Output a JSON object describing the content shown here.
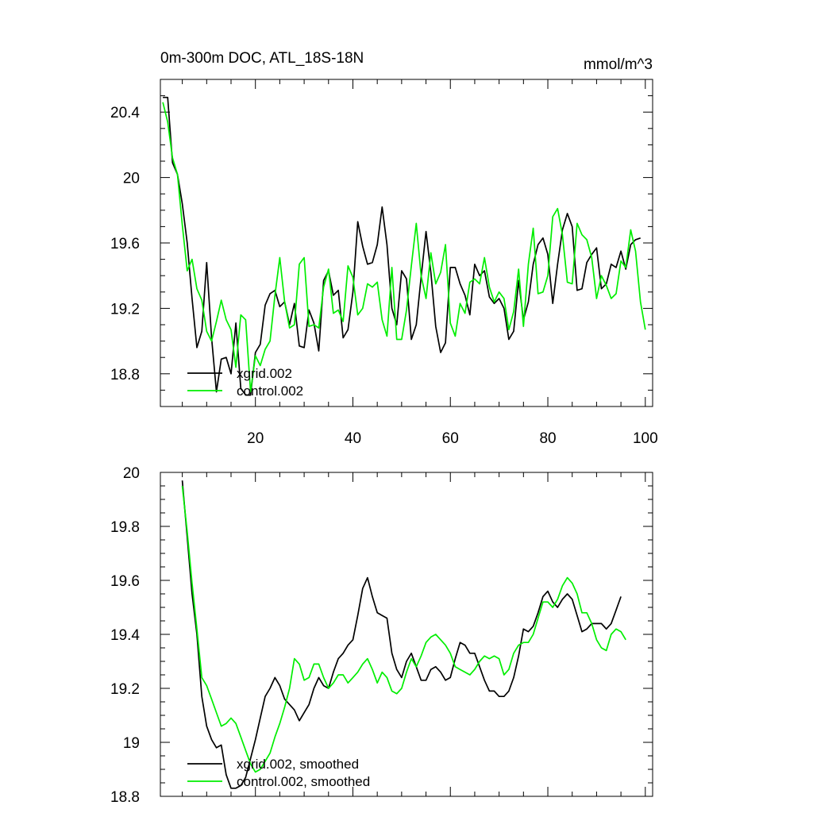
{
  "chart_data": [
    {
      "type": "line",
      "title": "0m-300m DOC, ATL_18S-18N",
      "units": "mmol/m^3",
      "xlim": [
        0.5,
        101.5
      ],
      "ylim": [
        18.6,
        20.6
      ],
      "xticks": [
        20,
        40,
        60,
        80,
        100
      ],
      "yticks": [
        18.8,
        19.2,
        19.6,
        20.0,
        20.4
      ],
      "show_x_labels": true,
      "legend": [
        {
          "name": "xgrid.002",
          "color": "#000000"
        },
        {
          "name": "control.002",
          "color": "#00ee00"
        }
      ],
      "series": [
        {
          "name": "xgrid.002",
          "color": "#000000",
          "x_start": 1,
          "values": [
            20.49,
            20.49,
            20.09,
            20.02,
            19.84,
            19.6,
            19.26,
            18.96,
            19.06,
            19.48,
            19.02,
            18.69,
            18.89,
            18.9,
            18.8,
            19.11,
            18.71,
            18.67,
            18.67,
            18.93,
            18.98,
            19.22,
            19.29,
            19.31,
            19.21,
            19.24,
            19.1,
            19.23,
            18.97,
            18.96,
            19.19,
            19.11,
            18.94,
            19.37,
            19.43,
            19.28,
            19.31,
            19.02,
            19.07,
            19.3,
            19.73,
            19.58,
            19.47,
            19.48,
            19.59,
            19.82,
            19.59,
            19.2,
            19.1,
            19.43,
            19.38,
            19.01,
            19.1,
            19.39,
            19.67,
            19.42,
            19.09,
            18.93,
            18.99,
            19.45,
            19.45,
            19.35,
            19.28,
            19.16,
            19.47,
            19.4,
            19.43,
            19.27,
            19.23,
            19.26,
            19.2,
            19.01,
            19.06,
            19.37,
            19.13,
            19.24,
            19.47,
            19.59,
            19.63,
            19.53,
            19.23,
            19.47,
            19.68,
            19.78,
            19.7,
            19.31,
            19.32,
            19.48,
            19.53,
            19.57,
            19.32,
            19.35,
            19.47,
            19.45,
            19.55,
            19.44,
            19.59,
            19.62,
            19.63
          ]
        },
        {
          "name": "control.002",
          "color": "#00ee00",
          "x_start": 1,
          "values": [
            20.46,
            20.34,
            20.12,
            20.02,
            19.71,
            19.43,
            19.5,
            19.32,
            19.25,
            19.06,
            19.0,
            19.12,
            19.25,
            19.13,
            19.07,
            18.84,
            19.16,
            19.13,
            18.69,
            18.91,
            18.85,
            18.95,
            19.0,
            19.28,
            19.51,
            19.24,
            19.08,
            19.1,
            19.47,
            19.51,
            19.09,
            19.1,
            19.08,
            19.33,
            19.44,
            19.17,
            19.19,
            19.12,
            19.46,
            19.39,
            19.16,
            19.2,
            19.35,
            19.33,
            19.36,
            19.13,
            19.03,
            19.45,
            19.01,
            19.01,
            19.19,
            19.46,
            19.72,
            19.4,
            19.26,
            19.54,
            19.35,
            19.42,
            19.59,
            19.11,
            19.03,
            19.23,
            19.17,
            19.36,
            19.38,
            19.35,
            19.51,
            19.33,
            19.24,
            19.3,
            19.26,
            19.07,
            19.18,
            19.44,
            19.09,
            19.47,
            19.69,
            19.29,
            19.3,
            19.4,
            19.76,
            19.81,
            19.65,
            19.36,
            19.35,
            19.72,
            19.65,
            19.62,
            19.51,
            19.26,
            19.4,
            19.34,
            19.26,
            19.29,
            19.49,
            19.45,
            19.68,
            19.55,
            19.24,
            19.07
          ]
        }
      ]
    },
    {
      "type": "line",
      "title": "",
      "xlim": [
        0.5,
        101.5
      ],
      "ylim": [
        18.8,
        20.0
      ],
      "xticks": [
        20,
        40,
        60,
        80,
        100
      ],
      "yticks": [
        18.8,
        19.0,
        19.2,
        19.4,
        19.6,
        19.8,
        20.0
      ],
      "show_x_labels": false,
      "legend": [
        {
          "name": "xgrid.002, smoothed",
          "color": "#000000"
        },
        {
          "name": "control.002, smoothed",
          "color": "#00ee00"
        }
      ],
      "series": [
        {
          "name": "xgrid.002, smoothed",
          "color": "#000000",
          "x_start": 5,
          "values": [
            19.97,
            19.76,
            19.55,
            19.4,
            19.17,
            19.06,
            19.01,
            18.98,
            18.99,
            18.88,
            18.83,
            18.83,
            18.84,
            18.87,
            18.94,
            19.01,
            19.09,
            19.17,
            19.2,
            19.24,
            19.21,
            19.16,
            19.14,
            19.12,
            19.08,
            19.11,
            19.14,
            19.2,
            19.24,
            19.21,
            19.2,
            19.26,
            19.31,
            19.33,
            19.36,
            19.38,
            19.47,
            19.57,
            19.61,
            19.54,
            19.48,
            19.47,
            19.46,
            19.33,
            19.27,
            19.24,
            19.3,
            19.33,
            19.28,
            19.23,
            19.23,
            19.27,
            19.28,
            19.26,
            19.23,
            19.24,
            19.31,
            19.37,
            19.36,
            19.33,
            19.33,
            19.28,
            19.23,
            19.19,
            19.19,
            19.17,
            19.17,
            19.19,
            19.24,
            19.32,
            19.42,
            19.41,
            19.43,
            19.48,
            19.54,
            19.56,
            19.52,
            19.5,
            19.53,
            19.55,
            19.53,
            19.47,
            19.41,
            19.42,
            19.44,
            19.44,
            19.44,
            19.42,
            19.44,
            19.49,
            19.54
          ]
        },
        {
          "name": "control.002, smoothed",
          "color": "#00ee00",
          "x_start": 5,
          "values": [
            19.95,
            19.78,
            19.59,
            19.42,
            19.24,
            19.21,
            19.16,
            19.11,
            19.06,
            19.07,
            19.09,
            19.07,
            19.02,
            18.97,
            18.92,
            18.89,
            18.9,
            18.93,
            18.96,
            19.02,
            19.07,
            19.13,
            19.2,
            19.31,
            19.29,
            19.23,
            19.24,
            19.29,
            19.29,
            19.24,
            19.2,
            19.22,
            19.25,
            19.25,
            19.22,
            19.24,
            19.26,
            19.29,
            19.31,
            19.27,
            19.22,
            19.26,
            19.24,
            19.19,
            19.18,
            19.2,
            19.26,
            19.31,
            19.28,
            19.32,
            19.37,
            19.39,
            19.4,
            19.38,
            19.36,
            19.33,
            19.28,
            19.27,
            19.26,
            19.25,
            19.27,
            19.3,
            19.32,
            19.31,
            19.32,
            19.31,
            19.25,
            19.27,
            19.33,
            19.36,
            19.37,
            19.37,
            19.4,
            19.46,
            19.52,
            19.52,
            19.5,
            19.53,
            19.58,
            19.61,
            19.59,
            19.55,
            19.48,
            19.48,
            19.44,
            19.38,
            19.35,
            19.34,
            19.4,
            19.42,
            19.41,
            19.38
          ]
        }
      ]
    }
  ]
}
